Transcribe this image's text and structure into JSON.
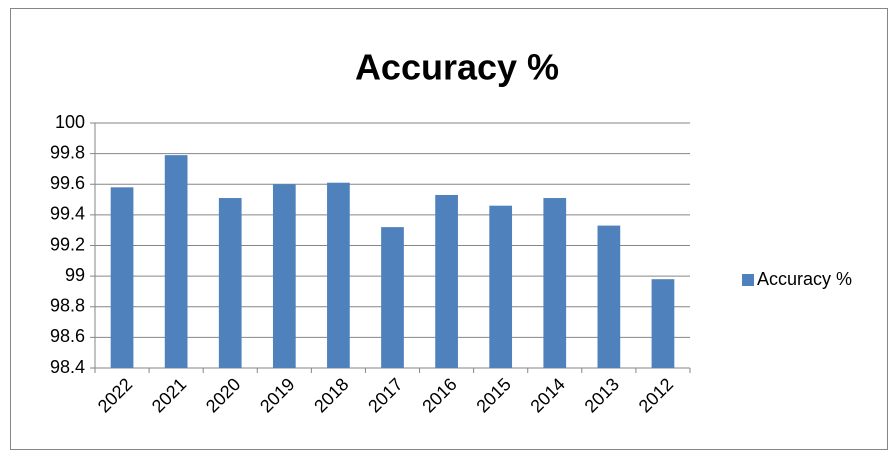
{
  "chart_data": {
    "type": "bar",
    "title": "Accuracy %",
    "categories": [
      "2022",
      "2021",
      "2020",
      "2019",
      "2018",
      "2017",
      "2016",
      "2015",
      "2014",
      "2013",
      "2012"
    ],
    "series": [
      {
        "name": "Accuracy %",
        "color": "#4f81bd",
        "values": [
          99.58,
          99.79,
          99.51,
          99.6,
          99.61,
          99.32,
          99.53,
          99.46,
          99.51,
          99.33,
          98.98
        ]
      }
    ],
    "ylim": [
      98.4,
      100
    ],
    "yticks": [
      98.4,
      98.6,
      98.8,
      99,
      99.2,
      99.4,
      99.6,
      99.8,
      100
    ],
    "grid": true,
    "legend": "right"
  }
}
